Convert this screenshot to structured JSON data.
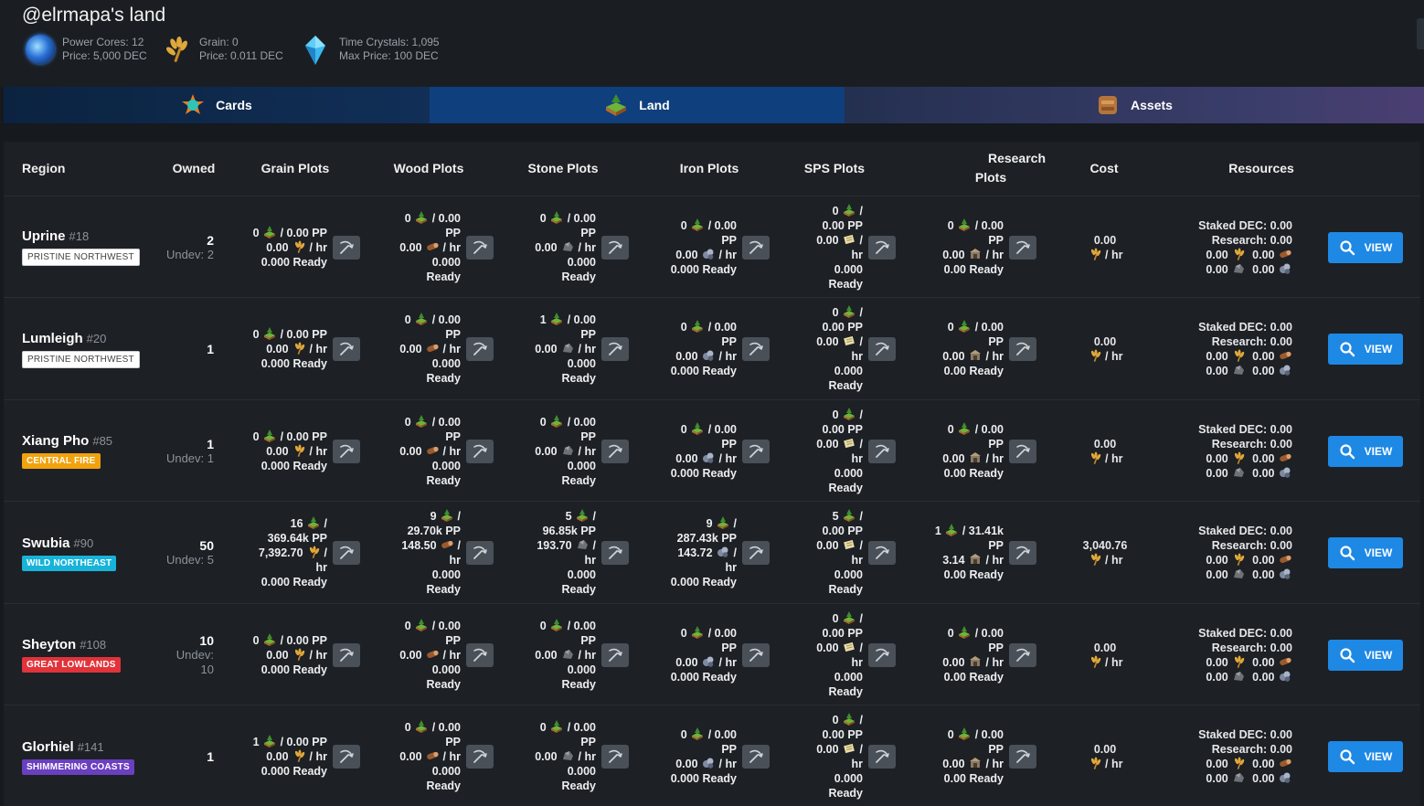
{
  "header": {
    "title": "@elrmapa's land",
    "stats": [
      {
        "icon": "power-core-icon",
        "line1": "Power Cores: 12",
        "line2": "Price: 5,000 DEC"
      },
      {
        "icon": "grain-icon",
        "line1": "Grain: 0",
        "line2": "Price: 0.011 DEC"
      },
      {
        "icon": "time-crystal-icon",
        "line1": "Time Crystals: 1,095",
        "line2": "Max Price: 100 DEC"
      }
    ]
  },
  "tabs": [
    {
      "label": "Cards",
      "icon": "cards-icon"
    },
    {
      "label": "Land",
      "icon": "land-icon"
    },
    {
      "label": "Assets",
      "icon": "assets-icon"
    }
  ],
  "columns": {
    "region": "Region",
    "owned": "Owned",
    "grain": "Grain Plots",
    "wood": "Wood Plots",
    "stone": "Stone Plots",
    "iron": "Iron Plots",
    "sps": "SPS Plots",
    "research_l1": "Research",
    "research_l2": "Plots",
    "cost": "Cost",
    "resources": "Resources"
  },
  "view_label": "VIEW",
  "units": {
    "per": "/",
    "pp": "PP",
    "hr": "hr",
    "ready": "Ready",
    "per_hr": "/ hr"
  },
  "resources_labels": {
    "staked": "Staked DEC: 0.00",
    "research": "Research: 0.00",
    "zero": "0.00"
  },
  "colors": {
    "accent": "#1e88e5",
    "land_tab": "#0f3f7d",
    "row_bg": "#1d2024"
  },
  "rows": [
    {
      "name": "Uprine",
      "id": "#18",
      "badge": "PRISTINE NORTHWEST",
      "badge_class": "badge-pristine",
      "owned": "2",
      "undev": "Undev: 2",
      "grain": {
        "count": "0",
        "pp": "/ 0.00 PP",
        "rate": "0.00",
        "ready": "0.000 Ready"
      },
      "wood": {
        "count": "0",
        "pp_a": "/ 0.00",
        "pp_b": "PP",
        "rate": "0.00",
        "ready_a": "0.000",
        "ready_b": "Ready"
      },
      "stone": {
        "count": "0",
        "pp_a": "/ 0.00",
        "pp_b": "PP",
        "rate": "0.00",
        "ready_a": "0.000",
        "ready_b": "Ready"
      },
      "iron": {
        "count": "0",
        "pp_a": "/ 0.00",
        "pp_b": "PP",
        "rate": "0.00",
        "ready": "0.000 Ready"
      },
      "sps": {
        "count": "0",
        "pp": "0.00 PP",
        "rate": "0.00",
        "ready_a": "0.000",
        "ready_b": "Ready"
      },
      "research": {
        "count": "0",
        "pp_a": "/ 0.00",
        "pp_b": "PP",
        "rate": "0.00",
        "ready": "0.00 Ready"
      },
      "cost": "0.00"
    },
    {
      "name": "Lumleigh",
      "id": "#20",
      "badge": "PRISTINE NORTHWEST",
      "badge_class": "badge-pristine",
      "owned": "1",
      "undev": "",
      "grain": {
        "count": "0",
        "pp": "/ 0.00 PP",
        "rate": "0.00",
        "ready": "0.000 Ready"
      },
      "wood": {
        "count": "0",
        "pp_a": "/ 0.00",
        "pp_b": "PP",
        "rate": "0.00",
        "ready_a": "0.000",
        "ready_b": "Ready"
      },
      "stone": {
        "count": "1",
        "pp_a": "/ 0.00",
        "pp_b": "PP",
        "rate": "0.00",
        "ready_a": "0.000",
        "ready_b": "Ready"
      },
      "iron": {
        "count": "0",
        "pp_a": "/ 0.00",
        "pp_b": "PP",
        "rate": "0.00",
        "ready": "0.000 Ready"
      },
      "sps": {
        "count": "0",
        "pp": "0.00 PP",
        "rate": "0.00",
        "ready_a": "0.000",
        "ready_b": "Ready"
      },
      "research": {
        "count": "0",
        "pp_a": "/ 0.00",
        "pp_b": "PP",
        "rate": "0.00",
        "ready": "0.00 Ready"
      },
      "cost": "0.00"
    },
    {
      "name": "Xiang Pho",
      "id": "#85",
      "badge": "CENTRAL FIRE",
      "badge_class": "badge-fire",
      "owned": "1",
      "undev": "Undev: 1",
      "grain": {
        "count": "0",
        "pp": "/ 0.00 PP",
        "rate": "0.00",
        "ready": "0.000 Ready"
      },
      "wood": {
        "count": "0",
        "pp_a": "/ 0.00",
        "pp_b": "PP",
        "rate": "0.00",
        "ready_a": "0.000",
        "ready_b": "Ready"
      },
      "stone": {
        "count": "0",
        "pp_a": "/ 0.00",
        "pp_b": "PP",
        "rate": "0.00",
        "ready_a": "0.000",
        "ready_b": "Ready"
      },
      "iron": {
        "count": "0",
        "pp_a": "/ 0.00",
        "pp_b": "PP",
        "rate": "0.00",
        "ready": "0.000 Ready"
      },
      "sps": {
        "count": "0",
        "pp": "0.00 PP",
        "rate": "0.00",
        "ready_a": "0.000",
        "ready_b": "Ready"
      },
      "research": {
        "count": "0",
        "pp_a": "/ 0.00",
        "pp_b": "PP",
        "rate": "0.00",
        "ready": "0.00 Ready"
      },
      "cost": "0.00"
    },
    {
      "name": "Swubia",
      "id": "#90",
      "badge": "WILD NORTHEAST",
      "badge_class": "badge-wild",
      "owned": "50",
      "undev": "Undev: 5",
      "grain": {
        "count": "16",
        "pp_a": "/",
        "pp_b": "369.64k PP",
        "rate": "7,392.70",
        "rate_b": "hr",
        "ready": "0.000 Ready"
      },
      "wood": {
        "count": "9",
        "pp_a": "/",
        "pp_b": "29.70k PP",
        "rate": "148.50",
        "rate_b": "hr",
        "ready_a": "0.000",
        "ready_b": "Ready"
      },
      "stone": {
        "count": "5",
        "pp_a": "/",
        "pp_b": "96.85k PP",
        "rate": "193.70",
        "rate_b": "hr",
        "ready_a": "0.000",
        "ready_b": "Ready"
      },
      "iron": {
        "count": "9",
        "pp_a": "/",
        "pp_b": "287.43k PP",
        "rate": "143.72",
        "rate_b": "hr",
        "ready": "0.000 Ready"
      },
      "sps": {
        "count": "5",
        "pp": "0.00 PP",
        "rate": "0.00",
        "ready_a": "0.000",
        "ready_b": "Ready"
      },
      "research": {
        "count": "1",
        "pp_a": "/ 31.41k",
        "pp_b": "PP",
        "rate": "3.14",
        "ready": "0.00 Ready"
      },
      "cost": "3,040.76"
    },
    {
      "name": "Sheyton",
      "id": "#108",
      "badge": "GREAT LOWLANDS",
      "badge_class": "badge-lowlands",
      "owned": "10",
      "undev": "Undev:",
      "undev_b": "10",
      "grain": {
        "count": "0",
        "pp": "/ 0.00 PP",
        "rate": "0.00",
        "ready": "0.000 Ready"
      },
      "wood": {
        "count": "0",
        "pp_a": "/ 0.00",
        "pp_b": "PP",
        "rate": "0.00",
        "ready_a": "0.000",
        "ready_b": "Ready"
      },
      "stone": {
        "count": "0",
        "pp_a": "/ 0.00",
        "pp_b": "PP",
        "rate": "0.00",
        "ready_a": "0.000",
        "ready_b": "Ready"
      },
      "iron": {
        "count": "0",
        "pp_a": "/ 0.00",
        "pp_b": "PP",
        "rate": "0.00",
        "ready": "0.000 Ready"
      },
      "sps": {
        "count": "0",
        "pp": "0.00 PP",
        "rate": "0.00",
        "ready_a": "0.000",
        "ready_b": "Ready"
      },
      "research": {
        "count": "0",
        "pp_a": "/ 0.00",
        "pp_b": "PP",
        "rate": "0.00",
        "ready": "0.00 Ready"
      },
      "cost": "0.00"
    },
    {
      "name": "Glorhiel",
      "id": "#141",
      "badge": "SHIMMERING COASTS",
      "badge_class": "badge-coasts",
      "owned": "1",
      "undev": "",
      "grain": {
        "count": "1",
        "pp": "/ 0.00 PP",
        "rate": "0.00",
        "ready": "0.000 Ready"
      },
      "wood": {
        "count": "0",
        "pp_a": "/ 0.00",
        "pp_b": "PP",
        "rate": "0.00",
        "ready_a": "0.000",
        "ready_b": "Ready"
      },
      "stone": {
        "count": "0",
        "pp_a": "/ 0.00",
        "pp_b": "PP",
        "rate": "0.00",
        "ready_a": "0.000",
        "ready_b": "Ready"
      },
      "iron": {
        "count": "0",
        "pp_a": "/ 0.00",
        "pp_b": "PP",
        "rate": "0.00",
        "ready": "0.000 Ready"
      },
      "sps": {
        "count": "0",
        "pp": "0.00 PP",
        "rate": "0.00",
        "ready_a": "0.000",
        "ready_b": "Ready"
      },
      "research": {
        "count": "0",
        "pp_a": "/ 0.00",
        "pp_b": "PP",
        "rate": "0.00",
        "ready": "0.00 Ready"
      },
      "cost": "0.00"
    }
  ]
}
